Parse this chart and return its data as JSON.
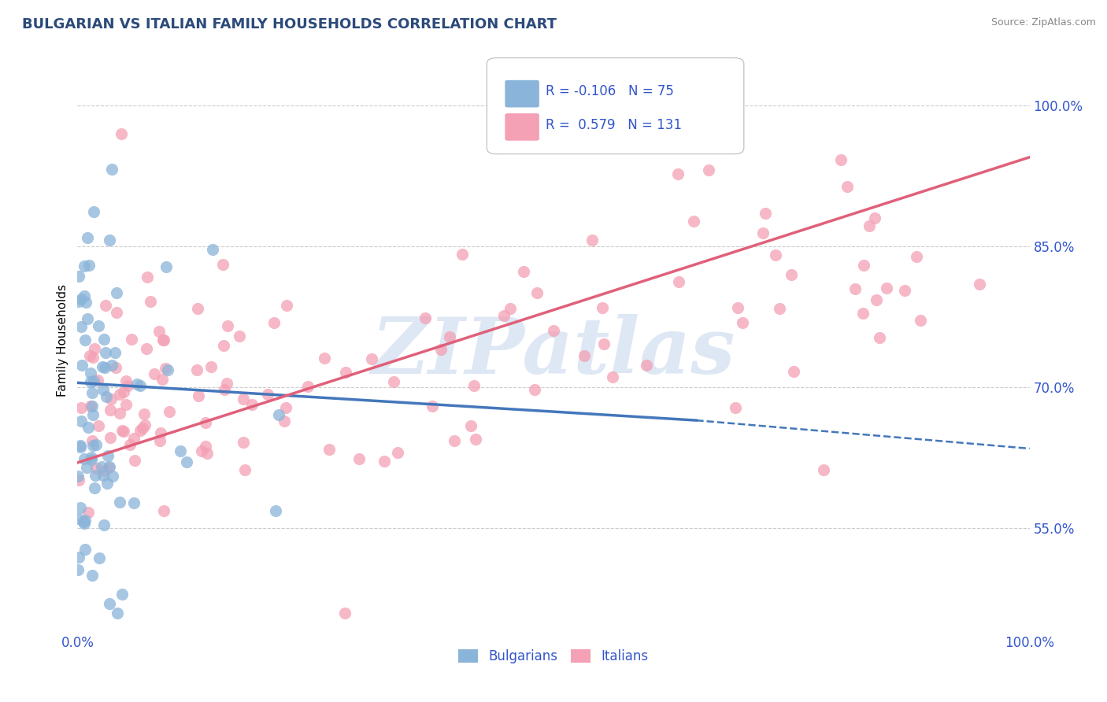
{
  "title": "BULGARIAN VS ITALIAN FAMILY HOUSEHOLDS CORRELATION CHART",
  "source": "Source: ZipAtlas.com",
  "ylabel": "Family Households",
  "yaxis_ticks": [
    0.55,
    0.7,
    0.85,
    1.0
  ],
  "yaxis_labels": [
    "55.0%",
    "70.0%",
    "85.0%",
    "100.0%"
  ],
  "xmin": 0.0,
  "xmax": 1.0,
  "ymin": 0.44,
  "ymax": 1.06,
  "bulgarian_color": "#8ab4d9",
  "italian_color": "#f4a0b5",
  "bulgarian_line_color": "#4477bb",
  "italian_line_color": "#e0607a",
  "bulgarian_R": -0.106,
  "bulgarian_N": 75,
  "italian_R": 0.579,
  "italian_N": 131,
  "bg_color": "#ffffff",
  "grid_color": "#cccccc",
  "legend_text_color": "#3355cc",
  "watermark_color": "#c8d8ee",
  "watermark_text": "ZIPatlas",
  "title_color": "#2c4a7a",
  "source_color": "#888888"
}
